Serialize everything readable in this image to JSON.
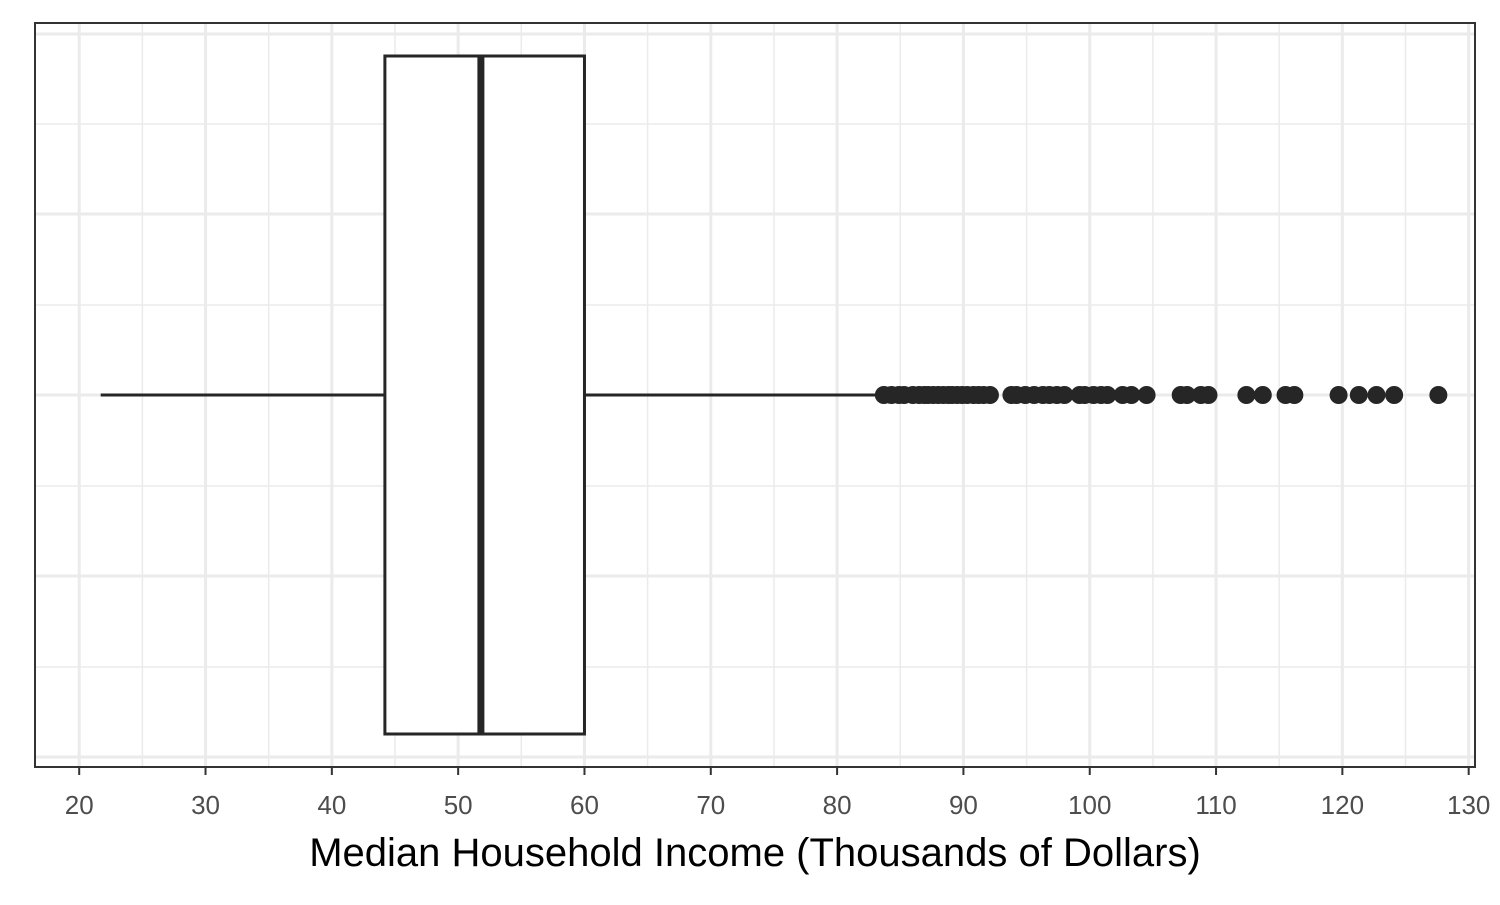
{
  "chart_data": {
    "type": "boxplot",
    "orientation": "horizontal",
    "title": "",
    "xlabel": "Median Household Income (Thousands of Dollars)",
    "ylabel": "",
    "xlim": [
      16.5,
      130.5
    ],
    "x_ticks": [
      20,
      30,
      40,
      50,
      60,
      70,
      80,
      90,
      100,
      110,
      120,
      130
    ],
    "x_tick_labels": [
      "20",
      "30",
      "40",
      "50",
      "60",
      "70",
      "80",
      "90",
      "100",
      "110",
      "120",
      "130"
    ],
    "grid": true,
    "box": {
      "whisker_low": 21.7,
      "q1": 44.2,
      "median": 51.8,
      "q3": 60.0,
      "whisker_high": 83.6
    },
    "outliers": [
      83.7,
      84.3,
      84.9,
      85.3,
      86.0,
      86.5,
      86.9,
      87.2,
      87.6,
      88.0,
      88.4,
      88.8,
      89.1,
      89.5,
      89.9,
      90.3,
      90.8,
      91.2,
      91.6,
      92.1,
      93.8,
      94.2,
      94.9,
      95.6,
      96.3,
      96.8,
      97.4,
      98.0,
      99.2,
      99.6,
      100.3,
      100.9,
      101.4,
      102.6,
      103.3,
      104.5,
      107.2,
      107.7,
      108.8,
      109.4,
      112.4,
      113.7,
      115.5,
      116.2,
      119.7,
      121.3,
      122.7,
      124.1,
      127.6
    ]
  },
  "colors": {
    "panel_border": "#333333",
    "grid": "#ebebeb",
    "box_stroke": "#262626",
    "point": "#262626",
    "tick_label": "#4d4d4d",
    "axis_title": "#000000"
  }
}
